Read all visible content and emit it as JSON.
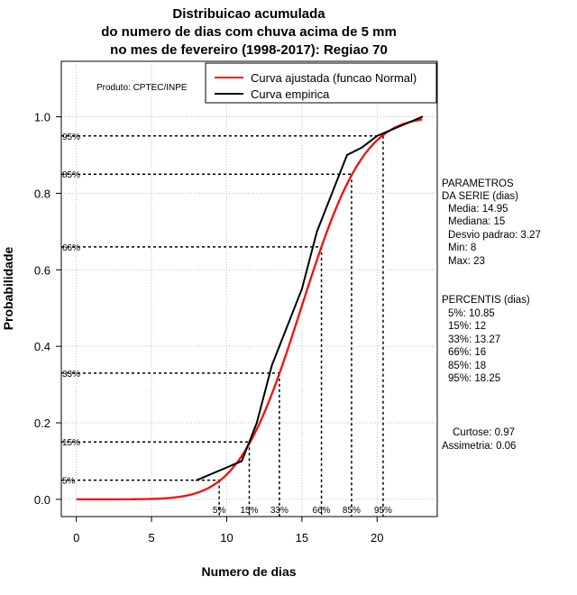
{
  "chart_data": {
    "type": "line",
    "title_lines": [
      "Distribuicao acumulada",
      "do numero de dias com chuva acima de 5 mm",
      "no mes de fevereiro (1998-2017): Regiao 70"
    ],
    "xlabel": "Numero de dias",
    "ylabel": "Probabilidade",
    "xlim": [
      -1,
      24
    ],
    "ylim": [
      -0.045,
      1.145
    ],
    "x_ticks": [
      0,
      5,
      10,
      15,
      20
    ],
    "x_tick_labels": [
      "0",
      "5",
      "10",
      "15",
      "20"
    ],
    "y_ticks": [
      0.0,
      0.2,
      0.4,
      0.6,
      0.8,
      1.0
    ],
    "y_tick_labels": [
      "0.0",
      "0.2",
      "0.4",
      "0.6",
      "0.8",
      "1.0"
    ],
    "grid": true,
    "credit": "Produto: CPTEC/INPE",
    "legend": {
      "placement": "top-right",
      "entries": [
        {
          "label": "Curva ajustada (funcao Normal)",
          "color": "#ff0000"
        },
        {
          "label": "Curva empirica",
          "color": "#000000"
        }
      ]
    },
    "series": [
      {
        "name": "Curva ajustada (funcao Normal)",
        "color": "#ff0000",
        "distribution": {
          "mean": 14.95,
          "sd": 3.27
        },
        "x_range": [
          0,
          23
        ]
      },
      {
        "name": "Curva empirica",
        "color": "#000000",
        "x": [
          8,
          11,
          12,
          13,
          15,
          16,
          17,
          18,
          19,
          20,
          23
        ],
        "values": [
          0.05,
          0.1,
          0.2,
          0.35,
          0.55,
          0.7,
          0.8,
          0.9,
          0.92,
          0.95,
          1.0
        ]
      }
    ],
    "percentiles": [
      {
        "label": "5%",
        "prob": 0.05,
        "x": 9.5
      },
      {
        "label": "15%",
        "prob": 0.15,
        "x": 11.5
      },
      {
        "label": "33%",
        "prob": 0.33,
        "x": 13.5
      },
      {
        "label": "66%",
        "prob": 0.66,
        "x": 16.3
      },
      {
        "label": "85%",
        "prob": 0.85,
        "x": 18.3
      },
      {
        "label": "95%",
        "prob": 0.95,
        "x": 20.4
      }
    ]
  },
  "parametros": {
    "header": [
      "PARAMETROS",
      "DA SERIE (dias)"
    ],
    "lines": [
      "Media: 14.95",
      "Mediana: 15",
      "Desvio padrao: 3.27",
      "Min: 8",
      "Max: 23"
    ]
  },
  "percentis": {
    "header": "PERCENTIS (dias)",
    "lines": [
      "5%: 10.85",
      "15%: 12",
      "33%: 13.27",
      "66%: 16",
      "85%: 18",
      "95%: 18.25"
    ]
  },
  "forma": {
    "lines": [
      "Curtose: 0.97",
      "Assimetria: 0.06"
    ]
  }
}
